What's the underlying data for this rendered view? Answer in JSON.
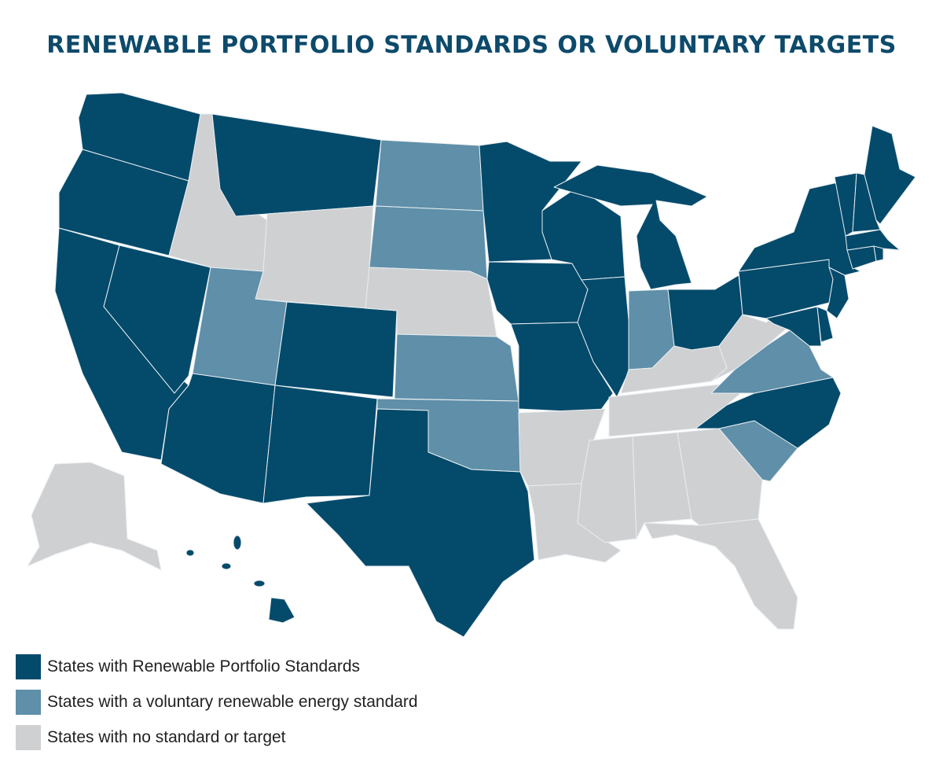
{
  "title": "RENEWABLE PORTFOLIO STANDARDS OR VOLUNTARY TARGETS",
  "colors": {
    "rps": "#034a6b",
    "voluntary": "#5f8fa9",
    "none": "#cfd0d2",
    "border": "#e9eef1"
  },
  "legend": [
    {
      "key": "rps",
      "label": "States with Renewable Portfolio Standards"
    },
    {
      "key": "voluntary",
      "label": "States with a voluntary renewable energy standard"
    },
    {
      "key": "none",
      "label": "States with no standard or target"
    }
  ],
  "states": {
    "WA": "rps",
    "OR": "rps",
    "CA": "rps",
    "NV": "rps",
    "ID": "none",
    "MT": "rps",
    "WY": "none",
    "UT": "voluntary",
    "AZ": "rps",
    "CO": "rps",
    "NM": "rps",
    "ND": "voluntary",
    "SD": "voluntary",
    "NE": "none",
    "KS": "voluntary",
    "OK": "voluntary",
    "TX": "rps",
    "MN": "rps",
    "IA": "rps",
    "MO": "rps",
    "AR": "none",
    "LA": "none",
    "WI": "rps",
    "IL": "rps",
    "MI": "rps",
    "IN": "voluntary",
    "OH": "rps",
    "KY": "none",
    "TN": "none",
    "MS": "none",
    "AL": "none",
    "GA": "none",
    "FL": "none",
    "SC": "voluntary",
    "NC": "rps",
    "VA": "voluntary",
    "WV": "none",
    "MD": "rps",
    "DE": "rps",
    "NJ": "rps",
    "PA": "rps",
    "NY": "rps",
    "CT": "rps",
    "RI": "rps",
    "MA": "rps",
    "VT": "rps",
    "NH": "rps",
    "ME": "rps",
    "AK": "none",
    "HI": "rps"
  }
}
